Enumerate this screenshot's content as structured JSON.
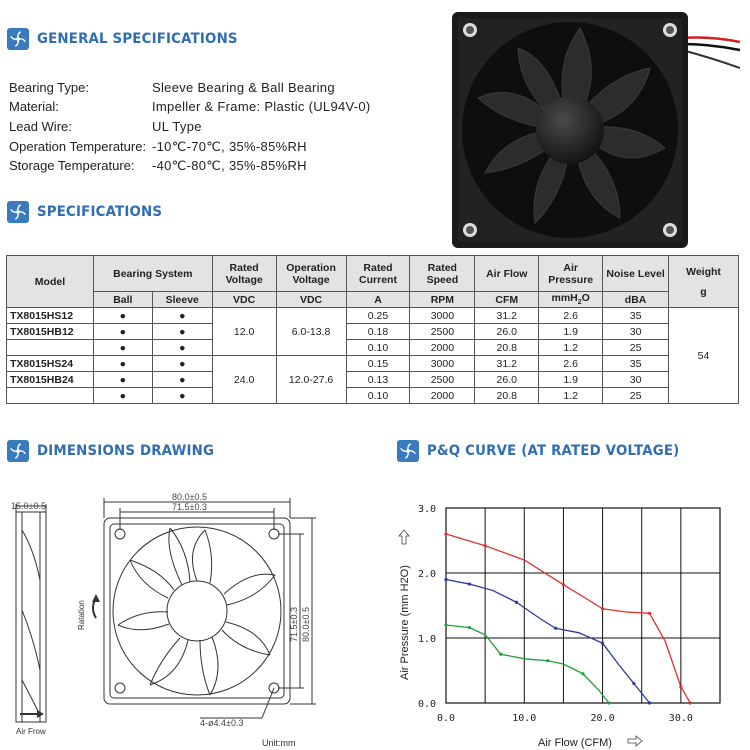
{
  "sections": {
    "general": "GENERAL SPECIFICATIONS",
    "specs": "SPECIFICATIONS",
    "dimensions": "DIMENSIONS DRAWING",
    "pq": "P&Q CURVE (AT RATED VOLTAGE)"
  },
  "general": [
    {
      "label": "Bearing Type:",
      "value": "Sleeve Bearing & Ball  Bearing"
    },
    {
      "label": "Material:",
      "value": "Impeller & Frame: Plastic (UL94V-0)"
    },
    {
      "label": "Lead Wire:",
      "value": "UL Type"
    },
    {
      "label": "Operation Temperature:",
      "value": "-10℃-70℃, 35%-85%RH"
    },
    {
      "label": "Storage Temperature:",
      "value": "-40℃-80℃, 35%-85%RH"
    }
  ],
  "table": {
    "headers": {
      "model": "Model",
      "bearing": "Bearing System",
      "voltage": "Rated Voltage",
      "op_voltage": "Operation Voltage",
      "current": "Rated Current",
      "speed": "Rated Speed",
      "airflow": "Air Flow",
      "pressure": "Air Pressure",
      "noise": "Noise Level",
      "weight": "Weight"
    },
    "units": {
      "ball": "Ball",
      "sleeve": "Sleeve",
      "voltage": "VDC",
      "op_voltage": "VDC",
      "current": "A",
      "speed": "RPM",
      "airflow": "CFM",
      "pressure_pre": "mmH",
      "pressure_sub": "2",
      "pressure_post": "O",
      "noise": "dBA",
      "weight": "g"
    },
    "dot": "●",
    "models": [
      "TX8015HS12",
      "TX8015HB12",
      "TX8015HS24",
      "TX8015HB24"
    ],
    "voltage_groups": [
      {
        "rated": "12.0",
        "operation": "6.0-13.8"
      },
      {
        "rated": "24.0",
        "operation": "12.0-27.6"
      }
    ],
    "weight": "54",
    "rows": [
      {
        "current": "0.25",
        "speed": "3000",
        "airflow": "31.2",
        "pressure": "2.6",
        "noise": "35"
      },
      {
        "current": "0.18",
        "speed": "2500",
        "airflow": "26.0",
        "pressure": "1.9",
        "noise": "30"
      },
      {
        "current": "0.10",
        "speed": "2000",
        "airflow": "20.8",
        "pressure": "1.2",
        "noise": "25"
      },
      {
        "current": "0.15",
        "speed": "3000",
        "airflow": "31.2",
        "pressure": "2.6",
        "noise": "35"
      },
      {
        "current": "0.13",
        "speed": "2500",
        "airflow": "26.0",
        "pressure": "1.9",
        "noise": "30"
      },
      {
        "current": "0.10",
        "speed": "2000",
        "airflow": "20.8",
        "pressure": "1.2",
        "noise": "25"
      }
    ]
  },
  "drawing": {
    "thickness": "15.0±0.5",
    "outer_w": "80.0±0.5",
    "inner_w": "71.5±0.3",
    "outer_h": "80.0±0.5",
    "inner_h": "71.5±0.3",
    "holes": "4-ø4.4±0.3",
    "rotation": "Ratation",
    "airflow": "Air Frow",
    "unit": "Unit:mm"
  },
  "chart_data": {
    "type": "line",
    "title": "",
    "xlabel": "Air Flow (CFM)",
    "ylabel": "Air Pressure (mm H2O)",
    "xlim": [
      0,
      35
    ],
    "ylim": [
      0,
      3.0
    ],
    "x_ticks": [
      "0.0",
      "10.0",
      "20.0",
      "30.0"
    ],
    "y_ticks": [
      "0.0",
      "1.0",
      "2.0",
      "3.0"
    ],
    "grid": true,
    "series": [
      {
        "color": "#e03030",
        "points": [
          [
            0,
            2.6
          ],
          [
            5,
            2.42
          ],
          [
            10,
            2.2
          ],
          [
            15,
            1.82
          ],
          [
            18,
            1.6
          ],
          [
            20,
            1.45
          ],
          [
            23,
            1.4
          ],
          [
            26,
            1.38
          ],
          [
            28,
            0.95
          ],
          [
            30,
            0.25
          ],
          [
            31.2,
            0.0
          ]
        ]
      },
      {
        "color": "#2a3a9a",
        "points": [
          [
            0,
            1.9
          ],
          [
            3,
            1.83
          ],
          [
            6,
            1.73
          ],
          [
            9,
            1.55
          ],
          [
            12,
            1.3
          ],
          [
            14,
            1.15
          ],
          [
            17,
            1.08
          ],
          [
            20,
            0.92
          ],
          [
            22,
            0.6
          ],
          [
            24,
            0.3
          ],
          [
            26,
            0.0
          ]
        ]
      },
      {
        "color": "#1f9e3a",
        "points": [
          [
            0,
            1.2
          ],
          [
            3,
            1.16
          ],
          [
            5,
            1.05
          ],
          [
            7,
            0.75
          ],
          [
            10,
            0.68
          ],
          [
            13,
            0.65
          ],
          [
            15,
            0.6
          ],
          [
            17.5,
            0.45
          ],
          [
            19.5,
            0.2
          ],
          [
            20.8,
            0.0
          ]
        ]
      }
    ]
  }
}
